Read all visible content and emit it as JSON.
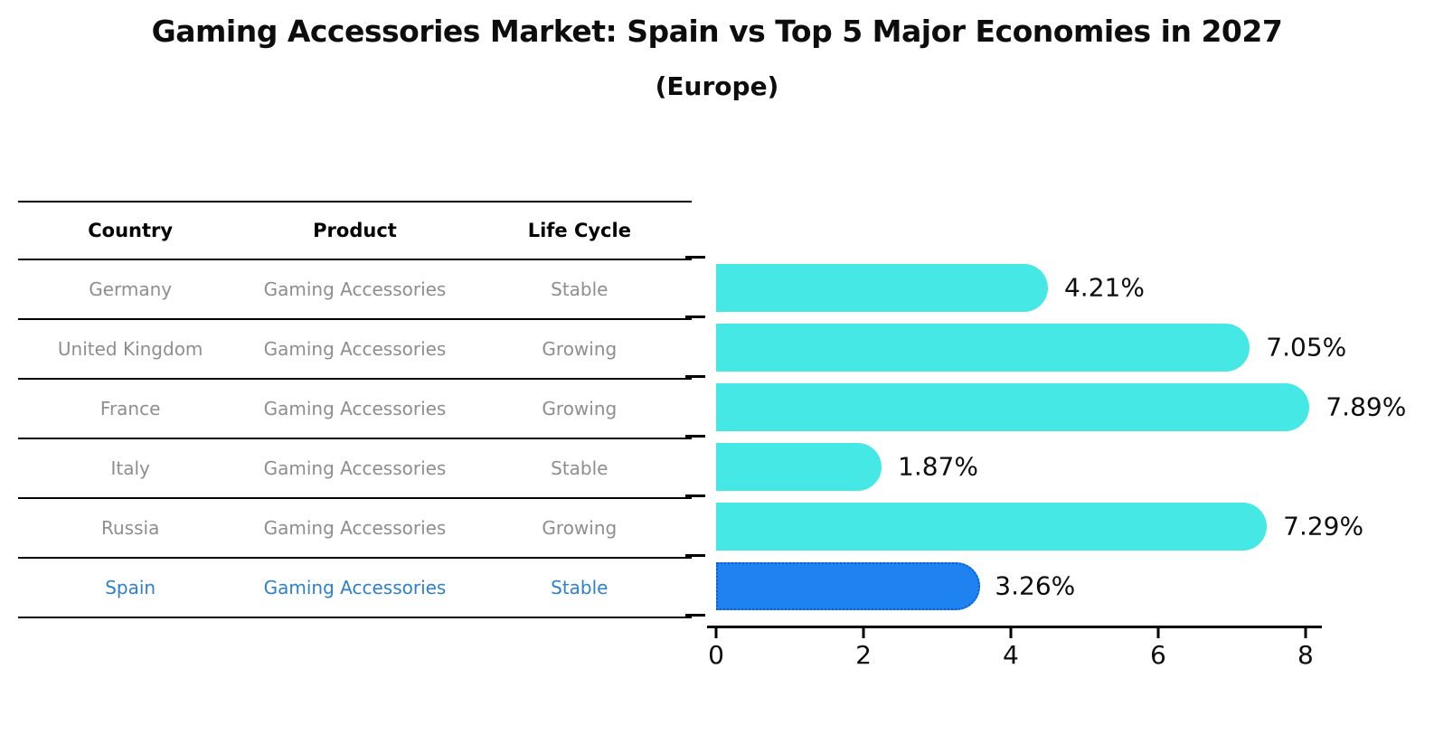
{
  "title": "Gaming Accessories Market: Spain vs Top 5 Major Economies in 2027",
  "subtitle": "(Europe)",
  "table": {
    "columns": [
      "Country",
      "Product",
      "Life Cycle"
    ],
    "rows": [
      {
        "country": "Germany",
        "product": "Gaming Accessories",
        "life_cycle": "Stable",
        "highlighted": false
      },
      {
        "country": "United Kingdom",
        "product": "Gaming Accessories",
        "life_cycle": "Growing",
        "highlighted": false
      },
      {
        "country": "France",
        "product": "Gaming Accessories",
        "life_cycle": "Growing",
        "highlighted": false
      },
      {
        "country": "Italy",
        "product": "Gaming Accessories",
        "life_cycle": "Stable",
        "highlighted": false
      },
      {
        "country": "Russia",
        "product": "Gaming Accessories",
        "life_cycle": "Growing",
        "highlighted": false
      },
      {
        "country": "Spain",
        "product": "Gaming Accessories",
        "life_cycle": "Stable",
        "highlighted": true
      }
    ]
  },
  "chart_data": {
    "type": "bar",
    "orientation": "horizontal",
    "title": "Gaming Accessories Market: Spain vs Top 5 Major Economies in 2027",
    "subtitle": "(Europe)",
    "categories": [
      "Germany",
      "United Kingdom",
      "France",
      "Italy",
      "Russia",
      "Spain"
    ],
    "values": [
      4.21,
      7.05,
      7.89,
      1.87,
      7.29,
      3.26
    ],
    "value_labels": [
      "4.21%",
      "7.05%",
      "7.89%",
      "1.87%",
      "7.29%",
      "3.26%"
    ],
    "x_ticks": [
      0,
      2,
      4,
      6,
      8
    ],
    "xlim": [
      0,
      8.2
    ],
    "xlabel": "",
    "ylabel": "",
    "grid": false,
    "legend": false,
    "value_label_position": "right",
    "highlight_index": 5,
    "bar_color_default": "#45E8E4",
    "bar_color_highlight": "#1E82F0",
    "highlight_border_style": "dotted"
  },
  "colors": {
    "bar_cyan": "#45E8E4",
    "bar_blue": "#1E82F0",
    "bar_blue_border": "#0B5ED7",
    "highlight_text": "#2E80C8",
    "row_text": "#8E8E8E",
    "line_color": "#000000"
  }
}
